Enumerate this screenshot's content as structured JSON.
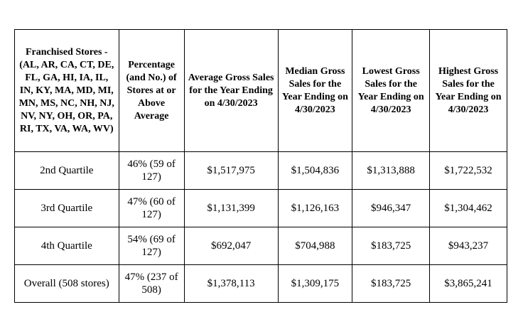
{
  "table": {
    "headers": [
      "Franchised Stores - (AL, AR, CA, CT, DE, FL, GA, HI, IA, IL, IN, KY, MA, MD, MI, MN, MS, NC, NH, NJ, NV, NY, OH, OR, PA, RI, TX, VA, WA, WV)",
      "Percentage (and No.) of Stores at or Above Average",
      "Average Gross Sales for the Year Ending on 4/30/2023",
      "Median Gross Sales for the Year Ending on 4/30/2023",
      "Lowest Gross Sales for the Year Ending on 4/30/2023",
      "Highest Gross Sales for the Year Ending on 4/30/2023"
    ],
    "rows": [
      [
        "2nd Quartile",
        "46% (59 of 127)",
        "$1,517,975",
        "$1,504,836",
        "$1,313,888",
        "$1,722,532"
      ],
      [
        "3rd Quartile",
        "47% (60 of 127)",
        "$1,131,399",
        "$1,126,163",
        "$946,347",
        "$1,304,462"
      ],
      [
        "4th Quartile",
        "54% (69 of 127)",
        "$692,047",
        "$704,988",
        "$183,725",
        "$943,237"
      ],
      [
        "Overall (508 stores)",
        "47% (237 of 508)",
        "$1,378,113",
        "$1,309,175",
        "$183,725",
        "$3,865,241"
      ]
    ]
  }
}
